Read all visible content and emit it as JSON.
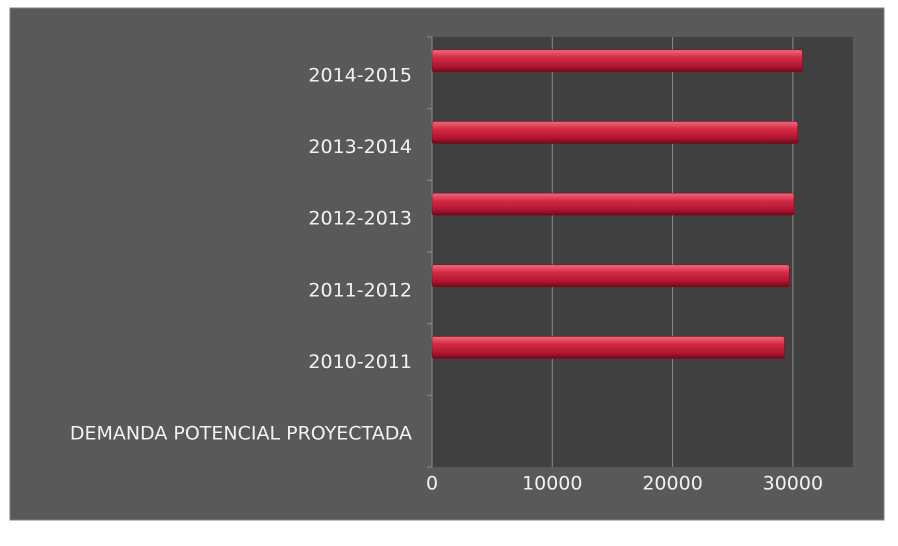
{
  "chart_data": {
    "type": "bar",
    "orientation": "horizontal",
    "categories": [
      "2014-2015",
      "2013-2014",
      "2012-2013",
      "2011-2012",
      "2010-2011",
      "DEMANDA POTENCIAL PROYECTADA"
    ],
    "values": [
      30800,
      30400,
      30100,
      29700,
      29300,
      null
    ],
    "color": "#c8203a",
    "xlim": [
      0,
      35000
    ],
    "xticks": [
      0,
      10000,
      20000,
      30000
    ],
    "grid": true
  }
}
